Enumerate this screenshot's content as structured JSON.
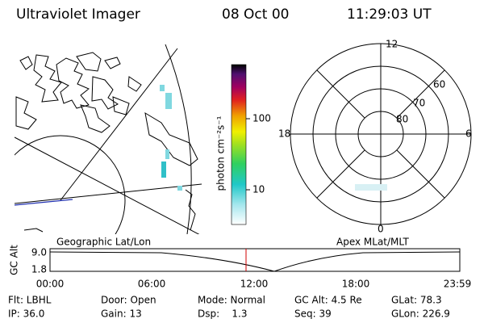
{
  "header": {
    "title": "Ultraviolet Imager",
    "date": "08 Oct 00",
    "time": "11:29:03 UT"
  },
  "colorbar": {
    "label": "photon cm⁻²s⁻¹",
    "ticks": [
      "100",
      "10"
    ]
  },
  "polar": {
    "hour_labels": [
      "12",
      "18",
      "6",
      "0"
    ],
    "lat_labels": [
      "60",
      "70",
      "80"
    ]
  },
  "map_labels": {
    "left": "Geographic Lat/Lon",
    "right": "Apex MLat/MLT"
  },
  "altitude_plot": {
    "ylabel": "GC Alt",
    "yticks": [
      "9.0",
      "1.8"
    ],
    "xticks": [
      "00:00",
      "06:00",
      "12:00",
      "18:00",
      "23:59"
    ]
  },
  "footer": [
    [
      "Flt: LBHL",
      "Door: Open",
      "Mode: Normal",
      "GC Alt: 4.5 Re",
      "GLat: 78.3"
    ],
    [
      "IP: 36.0",
      "Gain: 13",
      "Dsp:    1.3",
      "Seq: 39",
      "GLon: 226.9"
    ]
  ]
}
